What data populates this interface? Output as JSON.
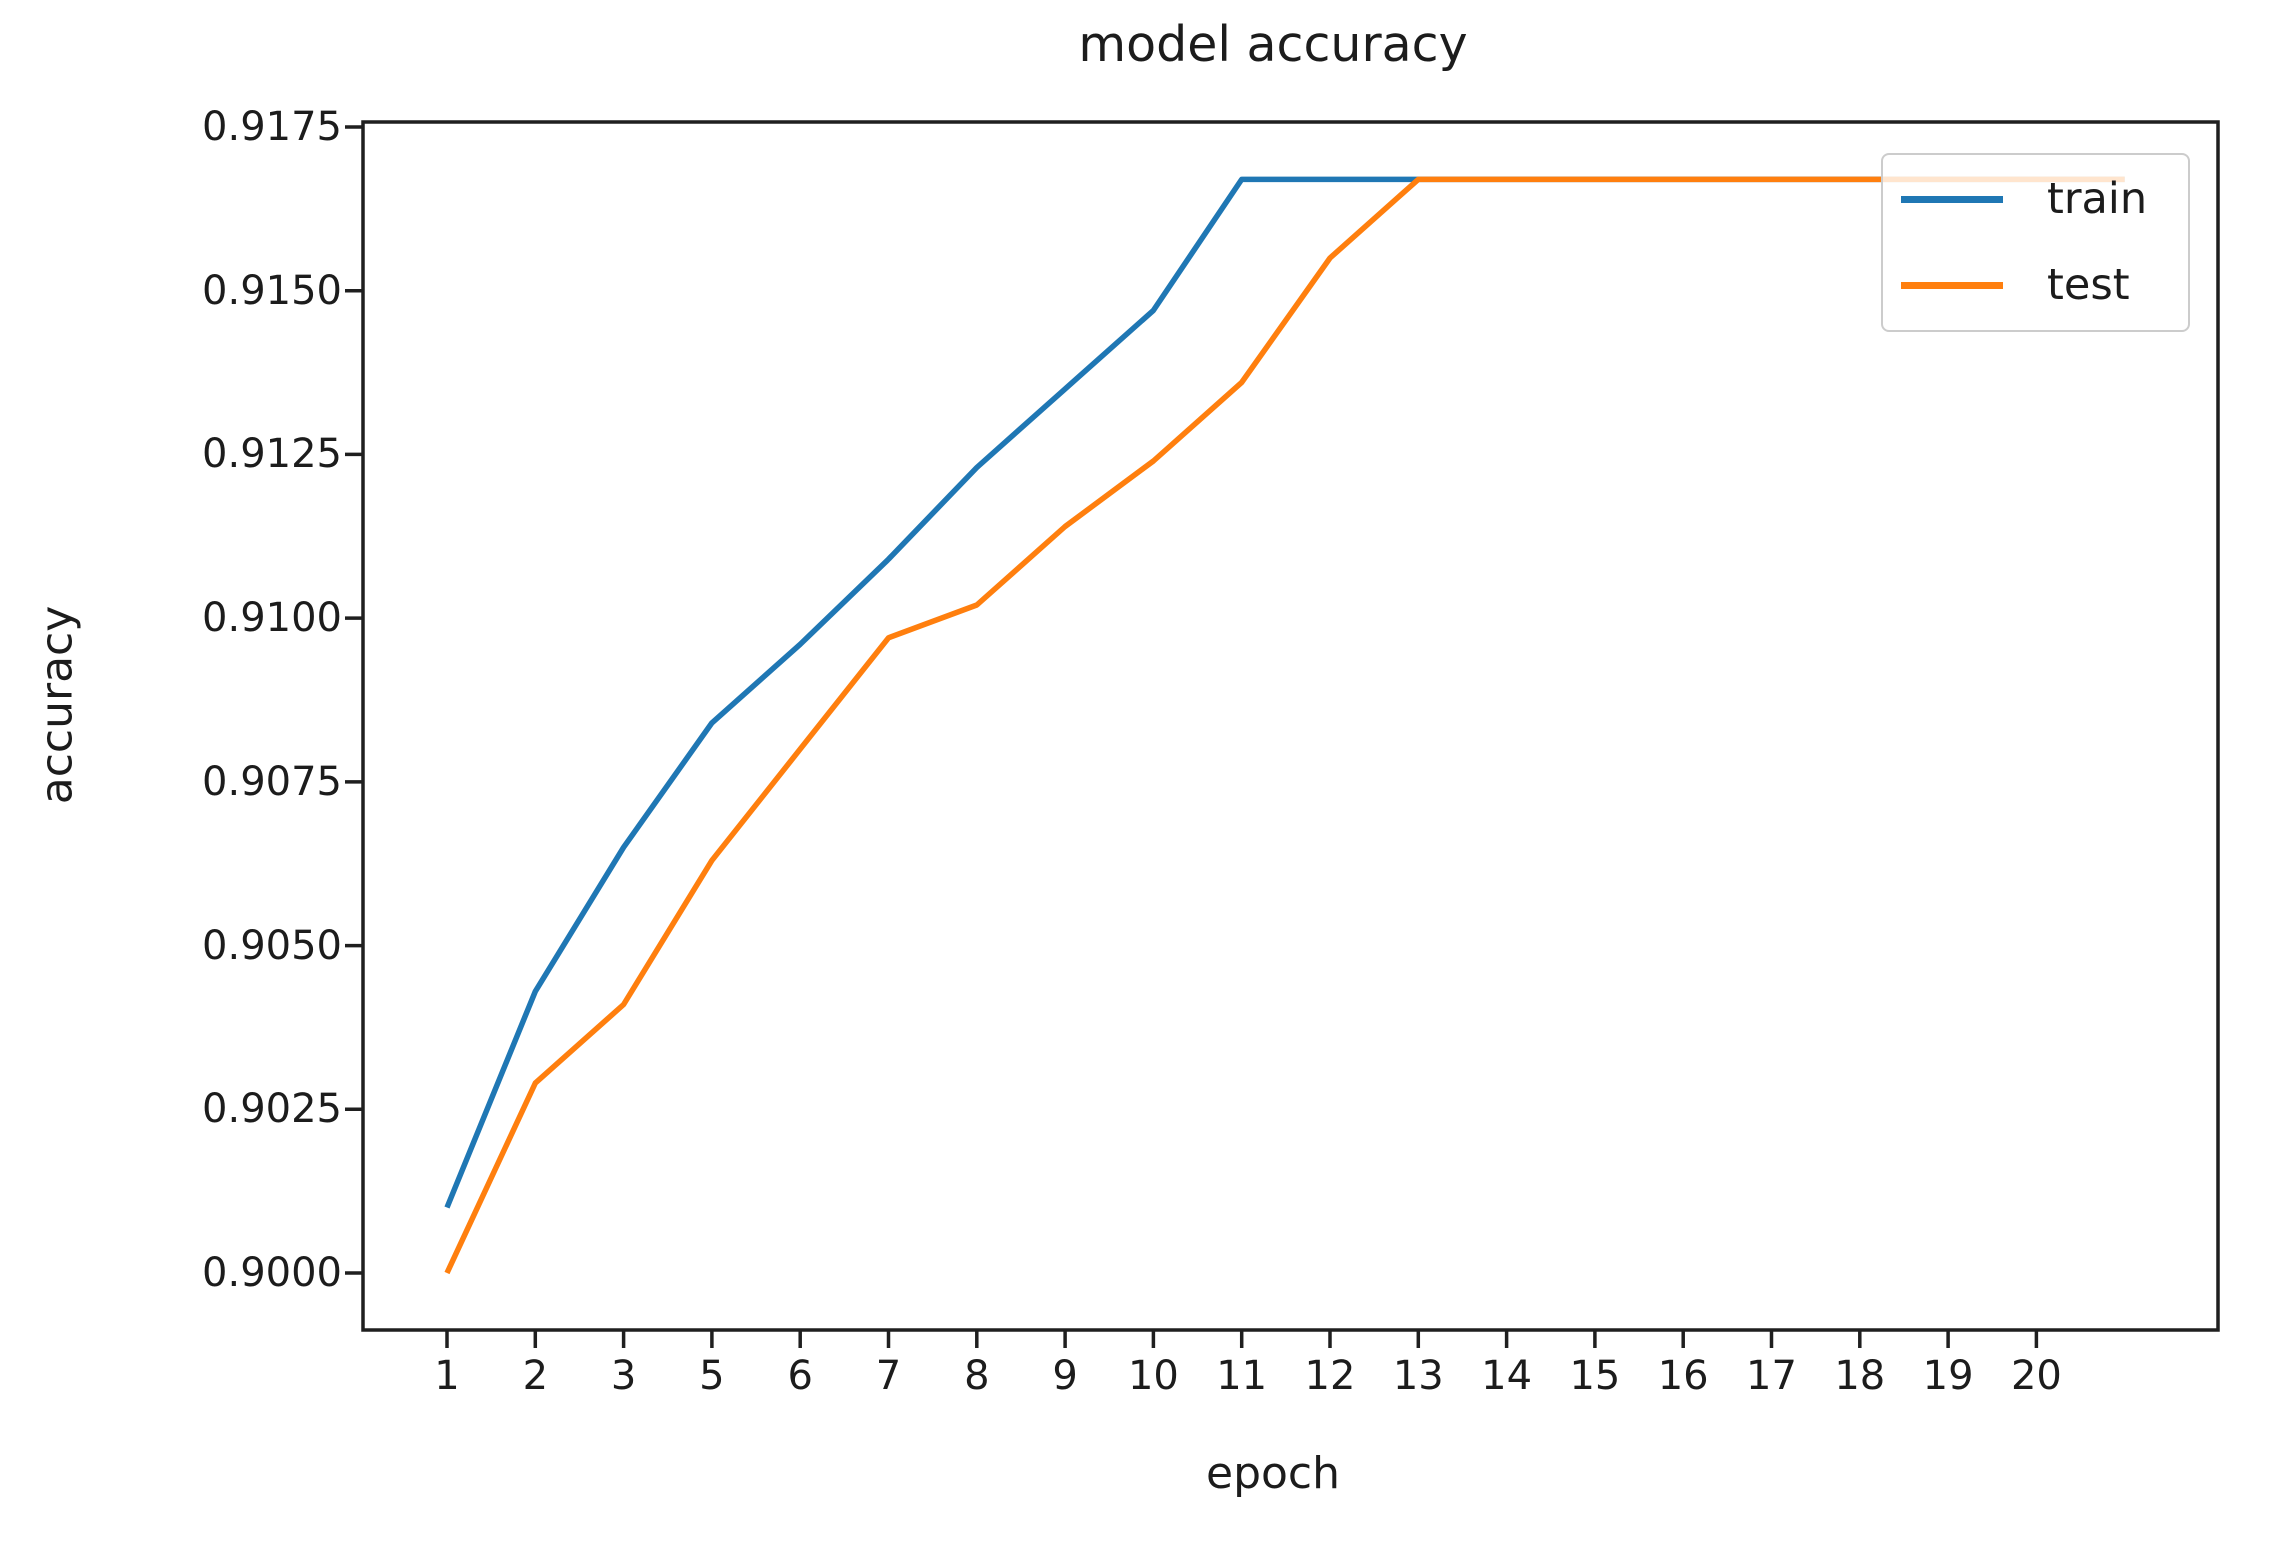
{
  "colors": {
    "background": "#ffffff",
    "text": "#1c1c1c",
    "spine": "#1f1f1f",
    "legend_border": "#cccccc",
    "train": "#1f77b4",
    "test": "#ff7f0e"
  },
  "chart_data": {
    "type": "line",
    "title": "model accuracy",
    "xlabel": "epoch",
    "ylabel": "accuracy",
    "x_tick_labels": [
      "1",
      "2",
      "3",
      "5",
      "6",
      "7",
      "8",
      "9",
      "10",
      "11",
      "12",
      "13",
      "14",
      "15",
      "16",
      "17",
      "18",
      "19",
      "20"
    ],
    "y_tick_labels": [
      "0.9000",
      "0.9025",
      "0.9050",
      "0.9075",
      "0.9100",
      "0.9125",
      "0.9150",
      "0.9175"
    ],
    "ylim": [
      0.8991,
      0.9176
    ],
    "grid": false,
    "legend_position": "upper right",
    "series": [
      {
        "name": "train",
        "color": "#1f77b4",
        "values": [
          0.901,
          0.9043,
          0.9065,
          0.9084,
          0.9096,
          0.9109,
          0.9123,
          0.9135,
          0.9147,
          0.9167,
          0.9167,
          0.9167,
          0.9167,
          0.9167,
          0.9167,
          0.9167,
          0.9167,
          0.9167,
          0.9167,
          0.9167
        ]
      },
      {
        "name": "test",
        "color": "#ff7f0e",
        "values": [
          0.9,
          0.9029,
          0.9041,
          0.9063,
          0.908,
          0.9097,
          0.9102,
          0.9114,
          0.9124,
          0.9136,
          0.9155,
          0.9167,
          0.9167,
          0.9167,
          0.9167,
          0.9167,
          0.9167,
          0.9167,
          0.9167,
          0.9167
        ]
      }
    ],
    "note": "Both curves plateau at 0.9167; the drawn lines extend one unlabeled step past the epoch-20 tick. Tick label 4 is absent from the x axis."
  }
}
